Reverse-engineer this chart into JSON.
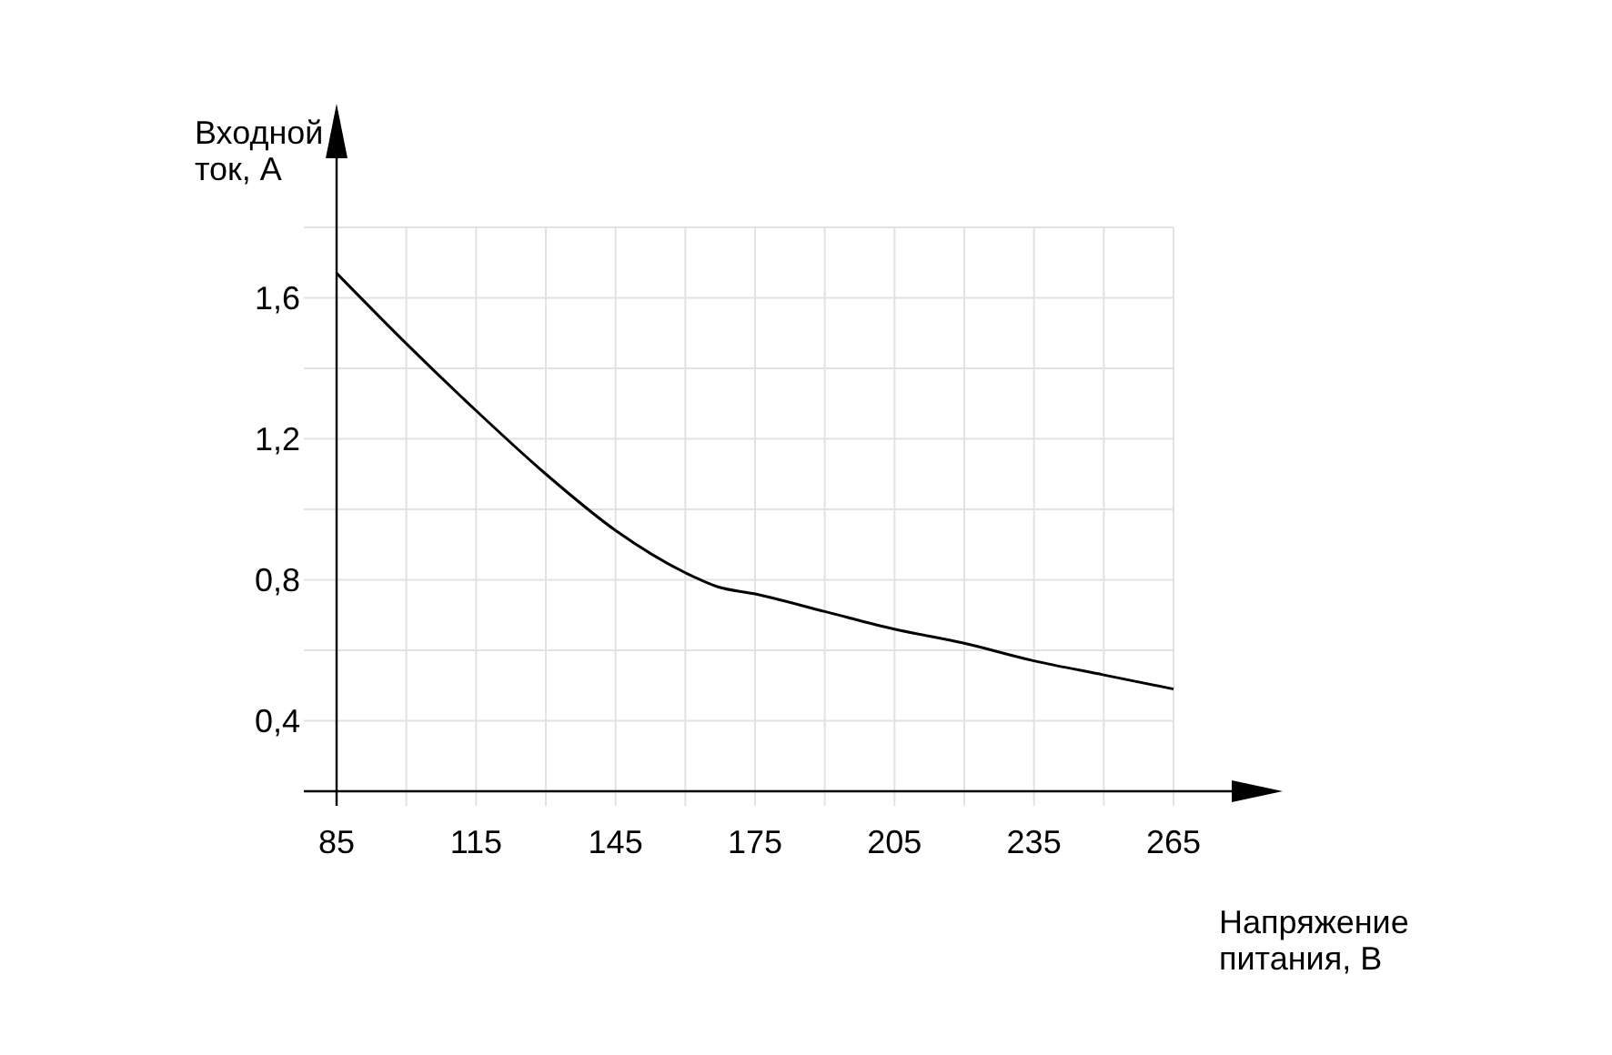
{
  "chart_data": {
    "type": "line",
    "xlabel": "Напряжение питания, В",
    "ylabel": "Входной ток, А",
    "x": [
      85,
      100,
      115,
      130,
      145,
      160,
      167,
      175,
      190,
      205,
      220,
      235,
      250,
      265
    ],
    "series": [
      {
        "color": "#000000",
        "values": [
          1.67,
          1.47,
          1.28,
          1.1,
          0.94,
          0.82,
          0.78,
          0.76,
          0.71,
          0.66,
          0.62,
          0.57,
          0.53,
          0.49
        ]
      }
    ],
    "xlim": [
      85,
      265
    ],
    "ylim": [
      0.2,
      1.8
    ],
    "xticks": [
      85,
      {
        "value": 100,
        "label": null
      },
      115,
      {
        "value": 130,
        "label": null
      },
      145,
      {
        "value": 160,
        "label": null
      },
      175,
      {
        "value": 190,
        "label": null
      },
      205,
      {
        "value": 220,
        "label": null
      },
      235,
      {
        "value": 250,
        "label": null
      },
      265
    ],
    "yticks": [
      {
        "value": 0.2,
        "label": null
      },
      {
        "value": 0.4,
        "label": "0,4"
      },
      {
        "value": 0.6,
        "label": null
      },
      {
        "value": 0.8,
        "label": "0,8"
      },
      {
        "value": 1.0,
        "label": null
      },
      {
        "value": 1.2,
        "label": "1,2"
      },
      {
        "value": 1.4,
        "label": null
      },
      {
        "value": 1.6,
        "label": "1,6"
      },
      {
        "value": 1.8,
        "label": null
      }
    ],
    "grid": true,
    "marker": "none",
    "line_style": "solid"
  }
}
